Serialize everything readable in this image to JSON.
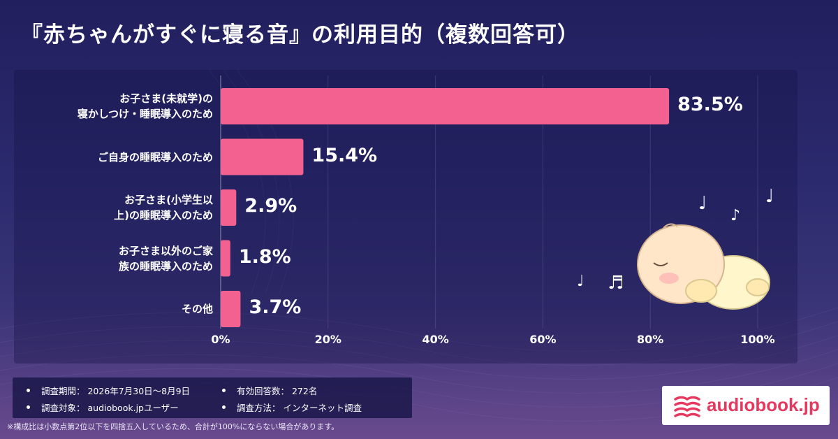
{
  "title": "『赤ちゃんがすぐに寝る音』の利用目的（複数回答可）",
  "colors": {
    "bar": "#f2618f",
    "background_top": "#221f5e",
    "background_bottom": "#6a4a8e",
    "logo_accent": "#e5395f"
  },
  "chart_data": {
    "type": "bar",
    "orientation": "horizontal",
    "categories": [
      [
        "お子さま(未就学)の",
        "寝かしつけ・睡眠導入のため"
      ],
      [
        "ご自身の睡眠導入のため"
      ],
      [
        "お子さま(小学生以",
        "上)の睡眠導入のため"
      ],
      [
        "お子さま以外のご家",
        "族の睡眠導入のため"
      ],
      [
        "その他"
      ]
    ],
    "values": [
      83.5,
      15.4,
      2.9,
      1.8,
      3.7
    ],
    "value_labels": [
      "83.5%",
      "15.4%",
      "2.9%",
      "1.8%",
      "3.7%"
    ],
    "xlim": [
      0,
      100
    ],
    "ticks": [
      0,
      20,
      40,
      60,
      80,
      100
    ],
    "tick_labels": [
      "0%",
      "20%",
      "40%",
      "60%",
      "80%",
      "100%"
    ],
    "grid": true
  },
  "survey": {
    "period_label": "調査期間：",
    "period_value": "2026年7月30日～8月9日",
    "responses_label": "有効回答数：",
    "responses_value": "272名",
    "target_label": "調査対象：",
    "target_value": "audiobook.jpユーザー",
    "method_label": "調査方法：",
    "method_value": "インターネット調査"
  },
  "footnote": "※構成比は小数点第2位以下を四捨五入しているため、合計が100%にならない場合があります。",
  "logo": {
    "text": "audiobook.jp",
    "icon": "book-waves-icon"
  },
  "illustration": {
    "icon": "sleeping-baby-icon",
    "notes": [
      "♩",
      "♪",
      "♩",
      "♬",
      "♩"
    ]
  }
}
